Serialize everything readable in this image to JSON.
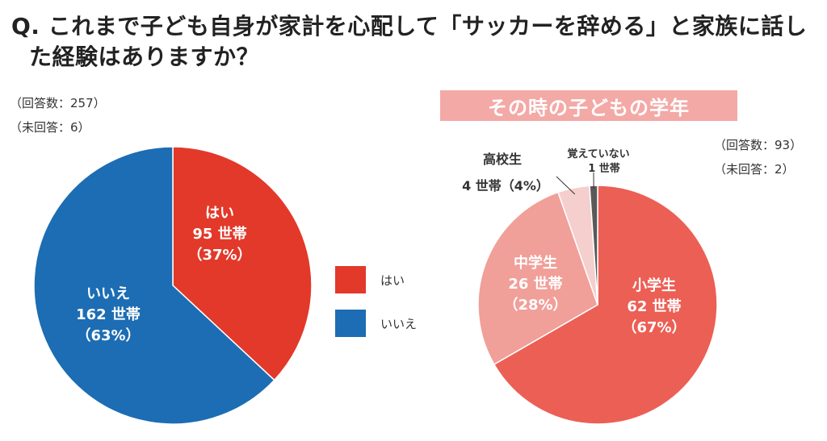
{
  "question": {
    "line1": "Q. これまで子ども自身が家計を心配して「サッカーを辞める」と家族に話し",
    "line2": "た経験はありますか？"
  },
  "left_meta": {
    "answered": "（回答数：257）",
    "unanswered": "（未回答：6）"
  },
  "right_title": "その時の子どもの学年",
  "right_meta": {
    "answered": "（回答数：93）",
    "unanswered": "（未回答：2）"
  },
  "legend": [
    {
      "label": "はい",
      "color": "#e2392a"
    },
    {
      "label": "いいえ",
      "color": "#1c6db3"
    }
  ],
  "chart_data": [
    {
      "type": "pie",
      "slices": [
        {
          "label": "はい",
          "count": "95 世帯",
          "pct_label": "（37%）",
          "value": 95,
          "color": "#e2392a"
        },
        {
          "label": "いいえ",
          "count": "162 世帯",
          "pct_label": "（63%）",
          "value": 162,
          "color": "#1c6db3"
        }
      ]
    },
    {
      "type": "pie",
      "title": "その時の子どもの学年",
      "slices": [
        {
          "label": "小学生",
          "count": "62 世帯",
          "pct_label": "（67%）",
          "value": 62,
          "color": "#ec5f55"
        },
        {
          "label": "中学生",
          "count": "26 世帯",
          "pct_label": "（28%）",
          "value": 26,
          "color": "#f19f99"
        },
        {
          "label": "高校生",
          "count": "4 世帯（4%）",
          "pct_label": "",
          "value": 4,
          "color": "#f5cfcd"
        },
        {
          "label": "覚えていない",
          "count": "1 世帯",
          "pct_label": "",
          "value": 1,
          "color": "#595959"
        }
      ]
    }
  ]
}
